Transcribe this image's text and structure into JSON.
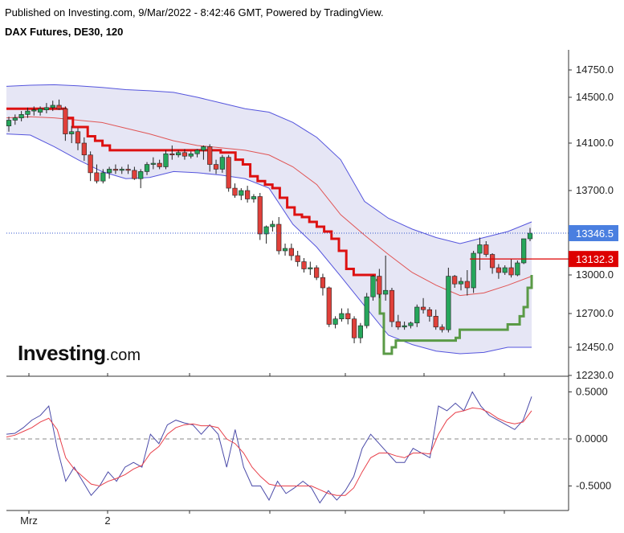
{
  "header": {
    "published": "Published on Investing.com, 9/Mar/2022 - 8:42:46 GMT, Powered by TradingView.",
    "title": "DAX Futures, DE30, 120"
  },
  "logo": {
    "main": "Investing",
    "suffix": ".com"
  },
  "colors": {
    "up": "#26a65b",
    "down": "#e0403a",
    "supertrend_down": "#dd1111",
    "supertrend_up": "#5a9a46",
    "bollinger_band": "#5555dd",
    "bollinger_fill": "#e6e6f5",
    "basis": "#e05555",
    "osc_main": "#4a4aa8",
    "osc_signal": "#e8404a",
    "last_price_tag": "#4a7fe0",
    "level_tag": "#dd0000"
  },
  "chart_data": [
    {
      "type": "candlestick",
      "indicators": [
        "Bollinger Bands",
        "SuperTrend"
      ],
      "y_ticks": [
        "14750.0",
        "14500.0",
        "14100.0",
        "13700.0",
        "13000.0",
        "12700.0",
        "12450.0",
        "12230.0"
      ],
      "tick_values": [
        14750,
        14500,
        14100,
        13700,
        13000,
        12700,
        12450,
        12230
      ],
      "x_labels": [
        "Mrz",
        "2"
      ],
      "last_price": {
        "label": "13346.5",
        "value": 13346.5
      },
      "level": {
        "label": "13132.3",
        "value": 13132.3
      },
      "candles": [
        [
          14250,
          14330,
          14200,
          14300
        ],
        [
          14300,
          14350,
          14260,
          14320
        ],
        [
          14320,
          14380,
          14290,
          14350
        ],
        [
          14350,
          14410,
          14320,
          14380
        ],
        [
          14380,
          14420,
          14340,
          14390
        ],
        [
          14370,
          14420,
          14340,
          14400
        ],
        [
          14390,
          14450,
          14360,
          14410
        ],
        [
          14410,
          14470,
          14380,
          14430
        ],
        [
          14430,
          14480,
          14390,
          14400
        ],
        [
          14400,
          14420,
          14120,
          14180
        ],
        [
          14180,
          14250,
          14100,
          14200
        ],
        [
          14200,
          14230,
          14040,
          14100
        ],
        [
          14100,
          14150,
          13950,
          14000
        ],
        [
          14000,
          14030,
          13780,
          13850
        ],
        [
          13850,
          13920,
          13760,
          13780
        ],
        [
          13780,
          13880,
          13760,
          13850
        ],
        [
          13850,
          13900,
          13800,
          13880
        ],
        [
          13880,
          13920,
          13840,
          13870
        ],
        [
          13870,
          13900,
          13840,
          13880
        ],
        [
          13880,
          13920,
          13840,
          13870
        ],
        [
          13870,
          13900,
          13790,
          13800
        ],
        [
          13800,
          13880,
          13720,
          13860
        ],
        [
          13860,
          13940,
          13830,
          13920
        ],
        [
          13920,
          13980,
          13880,
          13930
        ],
        [
          13930,
          13960,
          13880,
          13900
        ],
        [
          13900,
          14040,
          13880,
          14010
        ],
        [
          14010,
          14080,
          13960,
          14000
        ],
        [
          14000,
          14040,
          13980,
          14020
        ],
        [
          14020,
          14050,
          13960,
          13990
        ],
        [
          13990,
          14030,
          13970,
          14010
        ],
        [
          14010,
          14050,
          13980,
          14040
        ],
        [
          14040,
          14080,
          13960,
          14070
        ],
        [
          14070,
          14090,
          13860,
          13920
        ],
        [
          13920,
          13960,
          13840,
          13880
        ],
        [
          13880,
          14000,
          13850,
          13980
        ],
        [
          13980,
          14000,
          13690,
          13720
        ],
        [
          13720,
          13760,
          13640,
          13660
        ],
        [
          13660,
          13720,
          13620,
          13700
        ],
        [
          13700,
          13740,
          13600,
          13630
        ],
        [
          13630,
          13670,
          13600,
          13650
        ],
        [
          13650,
          13680,
          13290,
          13340
        ],
        [
          13340,
          13410,
          13260,
          13400
        ],
        [
          13400,
          13450,
          13360,
          13420
        ],
        [
          13420,
          13480,
          13170,
          13200
        ],
        [
          13200,
          13260,
          13160,
          13220
        ],
        [
          13220,
          13260,
          13120,
          13160
        ],
        [
          13160,
          13200,
          13070,
          13110
        ],
        [
          13110,
          13140,
          13020,
          13050
        ],
        [
          13050,
          13110,
          13000,
          13060
        ],
        [
          13060,
          13080,
          12960,
          12980
        ],
        [
          12980,
          13010,
          12840,
          12900
        ],
        [
          12900,
          12910,
          12600,
          12620
        ],
        [
          12620,
          12680,
          12590,
          12660
        ],
        [
          12660,
          12740,
          12640,
          12700
        ],
        [
          12700,
          12740,
          12620,
          12660
        ],
        [
          12660,
          12680,
          12480,
          12520
        ],
        [
          12520,
          12630,
          12480,
          12610
        ],
        [
          12610,
          12860,
          12590,
          12830
        ],
        [
          12830,
          13000,
          12800,
          12990
        ],
        [
          12990,
          13050,
          12820,
          12850
        ],
        [
          12850,
          13160,
          12800,
          12880
        ],
        [
          12880,
          12900,
          12600,
          12640
        ],
        [
          12640,
          12690,
          12580,
          12600
        ],
        [
          12600,
          12640,
          12580,
          12610
        ],
        [
          12610,
          12640,
          12590,
          12630
        ],
        [
          12630,
          12770,
          12600,
          12750
        ],
        [
          12750,
          12820,
          12700,
          12730
        ],
        [
          12730,
          12750,
          12640,
          12680
        ],
        [
          12680,
          12730,
          12580,
          12600
        ],
        [
          12600,
          12620,
          12560,
          12580
        ],
        [
          12580,
          13060,
          12560,
          12990
        ],
        [
          12990,
          13000,
          12900,
          12930
        ],
        [
          12930,
          12980,
          12880,
          12950
        ],
        [
          12950,
          13040,
          12840,
          12900
        ],
        [
          12900,
          13200,
          12860,
          13180
        ],
        [
          13180,
          13310,
          13040,
          13250
        ],
        [
          13250,
          13280,
          13150,
          13170
        ],
        [
          13170,
          13180,
          13010,
          13060
        ],
        [
          13060,
          13090,
          12970,
          13020
        ],
        [
          13020,
          13080,
          13000,
          13060
        ],
        [
          13060,
          13130,
          12980,
          13000
        ],
        [
          13000,
          13120,
          12990,
          13100
        ],
        [
          13100,
          13300,
          13090,
          13300
        ],
        [
          13300,
          13390,
          13280,
          13346.5
        ]
      ],
      "bollinger": {
        "upper": [
          14600,
          14610,
          14615,
          14605,
          14590,
          14570,
          14560,
          14545,
          14500,
          14450,
          14400,
          14370,
          14280,
          14150,
          13960,
          13610,
          13470,
          13380,
          13310,
          13260,
          13310,
          13360,
          13440
        ],
        "basis": [
          14320,
          14330,
          14320,
          14300,
          14280,
          14230,
          14180,
          14120,
          14080,
          14060,
          14040,
          14000,
          13900,
          13750,
          13500,
          13330,
          13170,
          13020,
          12920,
          12840,
          12860,
          12920,
          12990
        ],
        "lower": [
          14180,
          14170,
          14070,
          13960,
          13860,
          13800,
          13810,
          13860,
          13850,
          13830,
          13800,
          13720,
          13420,
          13230,
          12990,
          12760,
          12540,
          12470,
          12420,
          12400,
          12410,
          12450,
          12450
        ]
      },
      "supertrend": {
        "down": [
          14400,
          14400,
          14400,
          14400,
          14400,
          14400,
          14400,
          14400,
          14320,
          14240,
          14240,
          14160,
          14120,
          14080,
          14040,
          14040,
          14040,
          14040,
          14040,
          14040,
          14040,
          14040,
          14040,
          14040,
          14040,
          14040,
          14040,
          14040,
          14040,
          14020,
          14020,
          13960,
          13920,
          13820,
          13780,
          13750,
          13720,
          13640,
          13560,
          13500,
          13480,
          13440,
          13400,
          13360,
          13300,
          13200,
          13050,
          13000,
          13000,
          13000,
          13000
        ],
        "up": [
          12960,
          12700,
          12400,
          12400,
          12450,
          12500,
          12500,
          12500,
          12500,
          12500,
          12500,
          12500,
          12500,
          12500,
          12500,
          12500,
          12500,
          12500,
          12500,
          12500,
          12520,
          12580,
          12580,
          12580,
          12580,
          12580,
          12580,
          12580,
          12580,
          12580,
          12580,
          12580,
          12580,
          12620,
          12620,
          12620,
          12680,
          12750,
          12900,
          13000
        ]
      }
    },
    {
      "type": "line",
      "y_ticks": [
        "0.5000",
        "0.0000",
        "-0.5000"
      ],
      "tick_values": [
        0.5,
        0,
        -0.5
      ],
      "series": [
        {
          "values": [
            0.05,
            0.06,
            0.12,
            0.2,
            0.25,
            0.35,
            -0.1,
            -0.45,
            -0.3,
            -0.45,
            -0.6,
            -0.5,
            -0.35,
            -0.45,
            -0.3,
            -0.25,
            -0.3,
            0.05,
            -0.05,
            0.15,
            0.2,
            0.17,
            0.15,
            0.05,
            0.15,
            0.05,
            -0.3,
            0.1,
            -0.3,
            -0.5,
            -0.5,
            -0.65,
            -0.45,
            -0.58,
            -0.52,
            -0.45,
            -0.52,
            -0.68,
            -0.55,
            -0.65,
            -0.55,
            -0.4,
            -0.1,
            0.05,
            -0.05,
            -0.15,
            -0.25,
            -0.25,
            -0.1,
            -0.15,
            -0.2,
            0.35,
            0.3,
            0.38,
            0.3,
            0.5,
            0.35,
            0.25,
            0.2,
            0.15,
            0.1,
            0.2,
            0.45
          ]
        },
        {
          "values": [
            0.02,
            0.04,
            0.08,
            0.12,
            0.18,
            0.22,
            0.1,
            -0.2,
            -0.32,
            -0.4,
            -0.48,
            -0.5,
            -0.45,
            -0.42,
            -0.38,
            -0.32,
            -0.28,
            -0.15,
            -0.08,
            0.05,
            0.12,
            0.15,
            0.16,
            0.14,
            0.14,
            0.12,
            0.0,
            -0.05,
            -0.15,
            -0.3,
            -0.4,
            -0.48,
            -0.5,
            -0.5,
            -0.5,
            -0.5,
            -0.5,
            -0.54,
            -0.58,
            -0.6,
            -0.6,
            -0.52,
            -0.35,
            -0.2,
            -0.15,
            -0.15,
            -0.18,
            -0.2,
            -0.15,
            -0.15,
            -0.16,
            0.05,
            0.2,
            0.28,
            0.3,
            0.33,
            0.32,
            0.28,
            0.22,
            0.18,
            0.16,
            0.18,
            0.3
          ]
        }
      ]
    }
  ]
}
